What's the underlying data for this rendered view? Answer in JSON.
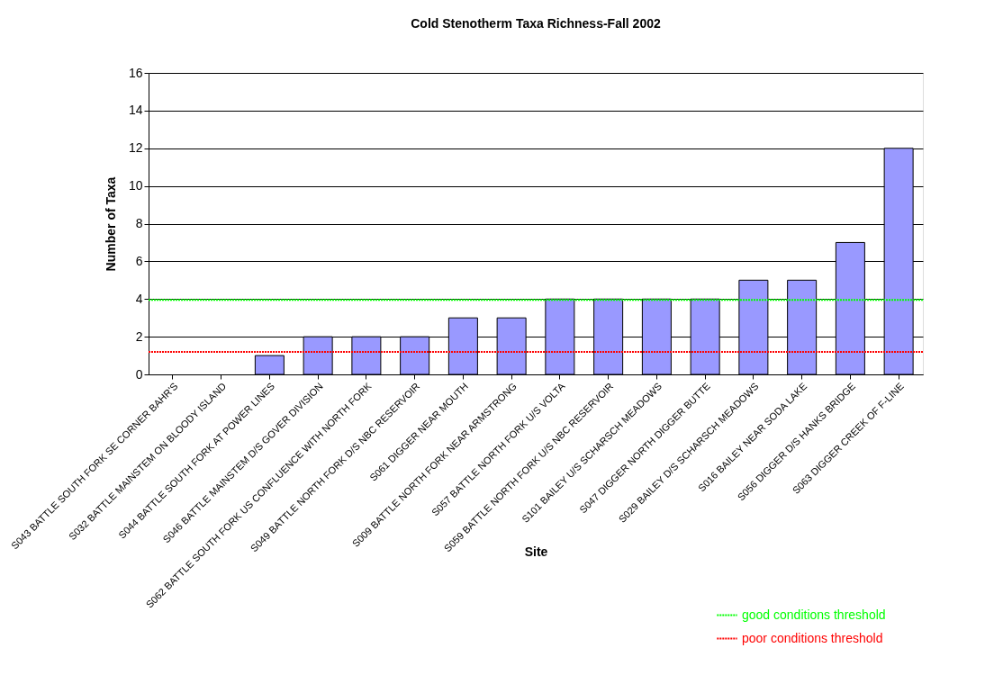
{
  "chart_data": {
    "type": "bar",
    "title": "Cold Stenotherm Taxa Richness-Fall 2002",
    "xlabel": "Site",
    "ylabel": "Number of Taxa",
    "categories": [
      "S043 BATTLE SOUTH FORK SE CORNER BAHR'S",
      "S032 BATTLE MAINSTEM ON BLOODY ISLAND",
      "S044 BATTLE SOUTH FORK AT POWER LINES",
      "S046 BATTLE MAINSTEM D/S GOVER DIVISION",
      "S062 BATTLE SOUTH FORK US CONFLUENCE WITH NORTH FORK",
      "S049 BATTLE NORTH FORK D/S NBC RESERVOIR",
      "S061 DIGGER NEAR MOUTH",
      "S009 BATTLE NORTH FORK NEAR ARMSTRONG",
      "S057 BATTLE NORTH FORK U/S VOLTA",
      "S059 BATTLE NORTH FORK U/S NBC RESERVOIR",
      "S101 BAILEY U/S SCHARSCH MEADOWS",
      "S047 DIGGER NORTH DIGGER BUTTE",
      "S029 BAILEY D/S SCHARSCH MEADOWS",
      "S016 BAILEY NEAR SODA LAKE",
      "S056 DIGGER D/S HANKS BRIDGE",
      "S063 DIGGER CREEK OF F-LINE"
    ],
    "values": [
      0,
      0,
      1,
      2,
      2,
      2,
      3,
      3,
      4,
      4,
      4,
      4,
      5,
      5,
      7,
      12
    ],
    "color": "#9999ff",
    "ylim": [
      0,
      16
    ],
    "yticks": [
      0,
      2,
      4,
      6,
      8,
      10,
      12,
      14,
      16
    ],
    "grid": "y",
    "legend": "bottom right",
    "ref_lines": [
      {
        "axis": "y",
        "value": 3.95,
        "label": "good conditions threshold",
        "color": "#00ff00",
        "line_style": "dotted"
      },
      {
        "axis": "y",
        "value": 1.2,
        "label": "poor conditions threshold",
        "color": "#ff0000",
        "line_style": "dotted"
      }
    ]
  }
}
